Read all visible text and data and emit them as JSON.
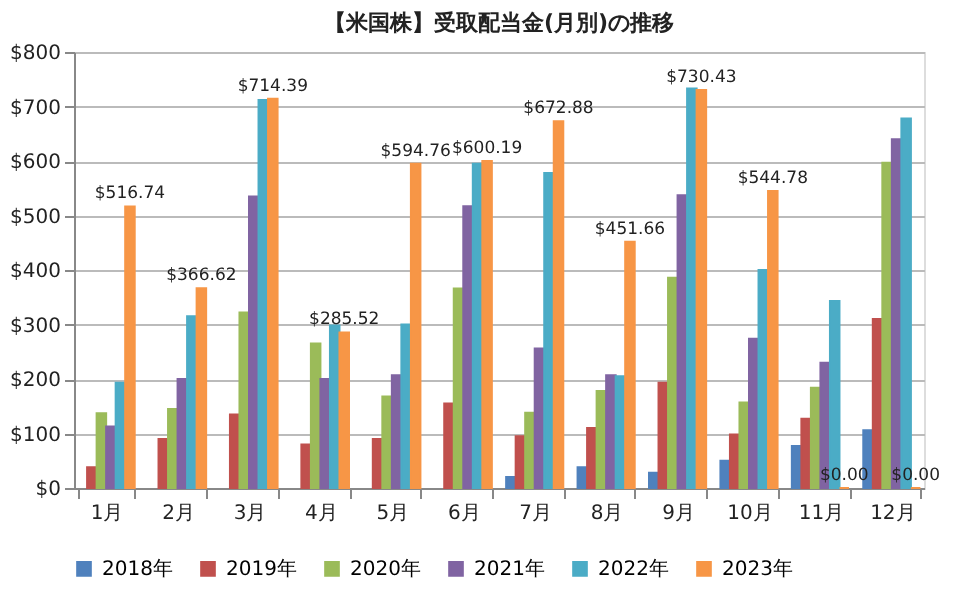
{
  "chart_data": {
    "type": "bar",
    "title": "【米国株】受取配当金(月別)の推移",
    "categories": [
      "1月",
      "2月",
      "3月",
      "4月",
      "5月",
      "6月",
      "7月",
      "8月",
      "9月",
      "10月",
      "11月",
      "12月"
    ],
    "series": [
      {
        "name": "2018年",
        "color": "#4f81bd",
        "values": [
          null,
          null,
          null,
          null,
          null,
          null,
          20,
          38,
          28,
          50,
          77,
          106
        ]
      },
      {
        "name": "2019年",
        "color": "#c0504d",
        "values": [
          38,
          90,
          135,
          80,
          90,
          155,
          95,
          110,
          193,
          98,
          127,
          310
        ]
      },
      {
        "name": "2020年",
        "color": "#9bbb59",
        "values": [
          137,
          145,
          322,
          265,
          168,
          366,
          138,
          178,
          386,
          157,
          184,
          597
        ]
      },
      {
        "name": "2021年",
        "color": "#8064a2",
        "values": [
          113,
          200,
          535,
          200,
          207,
          517,
          256,
          207,
          537,
          274,
          230,
          640
        ]
      },
      {
        "name": "2022年",
        "color": "#4bacc6",
        "values": [
          193,
          315,
          712,
          298,
          300,
          595,
          578,
          205,
          733,
          400,
          343,
          678
        ]
      },
      {
        "name": "2023年",
        "color": "#f79646",
        "values": [
          516.74,
          366.62,
          714.39,
          285.52,
          594.76,
          600.19,
          672.88,
          451.66,
          730.43,
          544.78,
          0.0,
          0.0
        ],
        "value_labels": [
          "$516.74",
          "$366.62",
          "$714.39",
          "$285.52",
          "$594.76",
          "$600.19",
          "$672.88",
          "$451.66",
          "$730.43",
          "$544.78",
          "$0.00",
          "$0.00"
        ]
      }
    ],
    "ylim": [
      0,
      800
    ],
    "yticks": [
      {
        "value": 0,
        "label": "$0"
      },
      {
        "value": 100,
        "label": "$100"
      },
      {
        "value": 200,
        "label": "$200"
      },
      {
        "value": 300,
        "label": "$300"
      },
      {
        "value": 400,
        "label": "$400"
      },
      {
        "value": 500,
        "label": "$500"
      },
      {
        "value": 600,
        "label": "$600"
      },
      {
        "value": 700,
        "label": "$700"
      },
      {
        "value": 800,
        "label": "$800"
      }
    ],
    "grid": "y",
    "legend": "bottom"
  }
}
